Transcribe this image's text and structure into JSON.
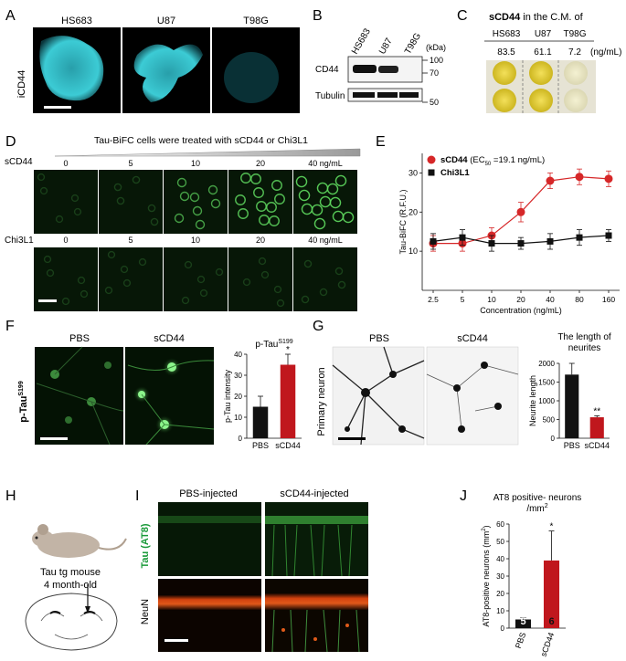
{
  "panels": {
    "A": "A",
    "B": "B",
    "C": "C",
    "D": "D",
    "E": "E",
    "F": "F",
    "G": "G",
    "H": "H",
    "I": "I",
    "J": "J"
  },
  "A": {
    "cells": [
      "HS683",
      "U87",
      "T98G"
    ],
    "ylabel": "iCD44"
  },
  "B": {
    "lanes": [
      "HS683",
      "U87",
      "T98G"
    ],
    "rows": [
      "CD44",
      "Tubulin"
    ],
    "kda_unit": "(kDa)",
    "markers": [
      "100",
      "70",
      "50"
    ]
  },
  "C": {
    "title_bold": "sCD44",
    "title_rest": " in the C.M. of",
    "cells": [
      "HS683",
      "U87",
      "T98G"
    ],
    "values": [
      "83.5",
      "61.1",
      "7.2"
    ],
    "unit": "(ng/mL)"
  },
  "D": {
    "header": "Tau-BiFC cells were treated with sCD44 or Chi3L1",
    "row_labels": [
      "sCD44",
      "Chi3L1"
    ],
    "doses": [
      "0",
      "5",
      "10",
      "20",
      "40 ng/mL"
    ]
  },
  "F": {
    "images": [
      "PBS",
      "sCD44"
    ],
    "ylabel": "p-Tau",
    "ylabel_sup": "S199"
  },
  "G": {
    "images": [
      "PBS",
      "sCD44"
    ],
    "ylabel": "Primary neuron"
  },
  "H": {
    "line1": "Tau tg mouse",
    "line2": "4 month-old"
  },
  "I": {
    "cols": [
      "PBS-injected",
      "sCD44-injected"
    ],
    "rows": [
      "Tau (AT8)",
      "NeuN"
    ]
  },
  "chart_data": [
    {
      "panel": "E",
      "type": "line",
      "ylabel": "Tau-BiFC (R.F.U.)",
      "xlabel": "Concentration (ng/mL)",
      "x": [
        "2.5",
        "5",
        "10",
        "20",
        "40",
        "80",
        "160"
      ],
      "ylim": [
        0,
        35
      ],
      "yticks": [
        10,
        20,
        30
      ],
      "legend_position": "top-left",
      "series": [
        {
          "name": "sCD44",
          "name_suffix": " (EC",
          "ec_sub": "50",
          "ec_rest": " =19.1 ng/mL)",
          "color": "#d62728",
          "marker": "circle",
          "values": [
            12,
            12,
            14,
            20,
            28,
            29,
            28.5
          ],
          "errors": [
            2,
            2,
            2,
            2.5,
            2,
            2,
            2
          ]
        },
        {
          "name": "Chi3L1",
          "color": "#111111",
          "marker": "square",
          "values": [
            12.5,
            13.5,
            12,
            12,
            12.5,
            13.5,
            14
          ],
          "errors": [
            2,
            2,
            2,
            1.5,
            2,
            2,
            1.5
          ]
        }
      ]
    },
    {
      "panel": "F",
      "type": "bar",
      "title": "p-Tau",
      "title_sup": "S199",
      "ylabel": "p-Tau intensity",
      "categories": [
        "PBS",
        "sCD44"
      ],
      "values": [
        15,
        35
      ],
      "errors": [
        5,
        5
      ],
      "colors": [
        "#111111",
        "#c0171d"
      ],
      "ylim": [
        0,
        40
      ],
      "yticks": [
        0,
        10,
        20,
        30,
        40
      ],
      "significance": "*"
    },
    {
      "panel": "G",
      "type": "bar",
      "title": "The length of neurites",
      "ylabel": "Neurite length",
      "categories": [
        "PBS",
        "sCD44"
      ],
      "values": [
        1700,
        560
      ],
      "errors": [
        300,
        40
      ],
      "colors": [
        "#111111",
        "#c0171d"
      ],
      "ylim": [
        0,
        2000
      ],
      "yticks": [
        0,
        500,
        1000,
        1500,
        2000
      ],
      "significance": "**"
    },
    {
      "panel": "J",
      "type": "bar",
      "title": "AT8 positive- neurons /mm",
      "title_sup": "2",
      "ylabel": "AT8-positive neurons (mm",
      "ylabel_sup": "2",
      "ylabel_end": ")",
      "categories": [
        "PBS",
        "sCD44"
      ],
      "values": [
        5,
        39
      ],
      "errors": [
        1,
        17
      ],
      "n": [
        "5",
        "6"
      ],
      "colors": [
        "#111111",
        "#c0171d"
      ],
      "ylim": [
        0,
        60
      ],
      "yticks": [
        0,
        10,
        20,
        30,
        40,
        50,
        60
      ],
      "significance": "*"
    }
  ]
}
